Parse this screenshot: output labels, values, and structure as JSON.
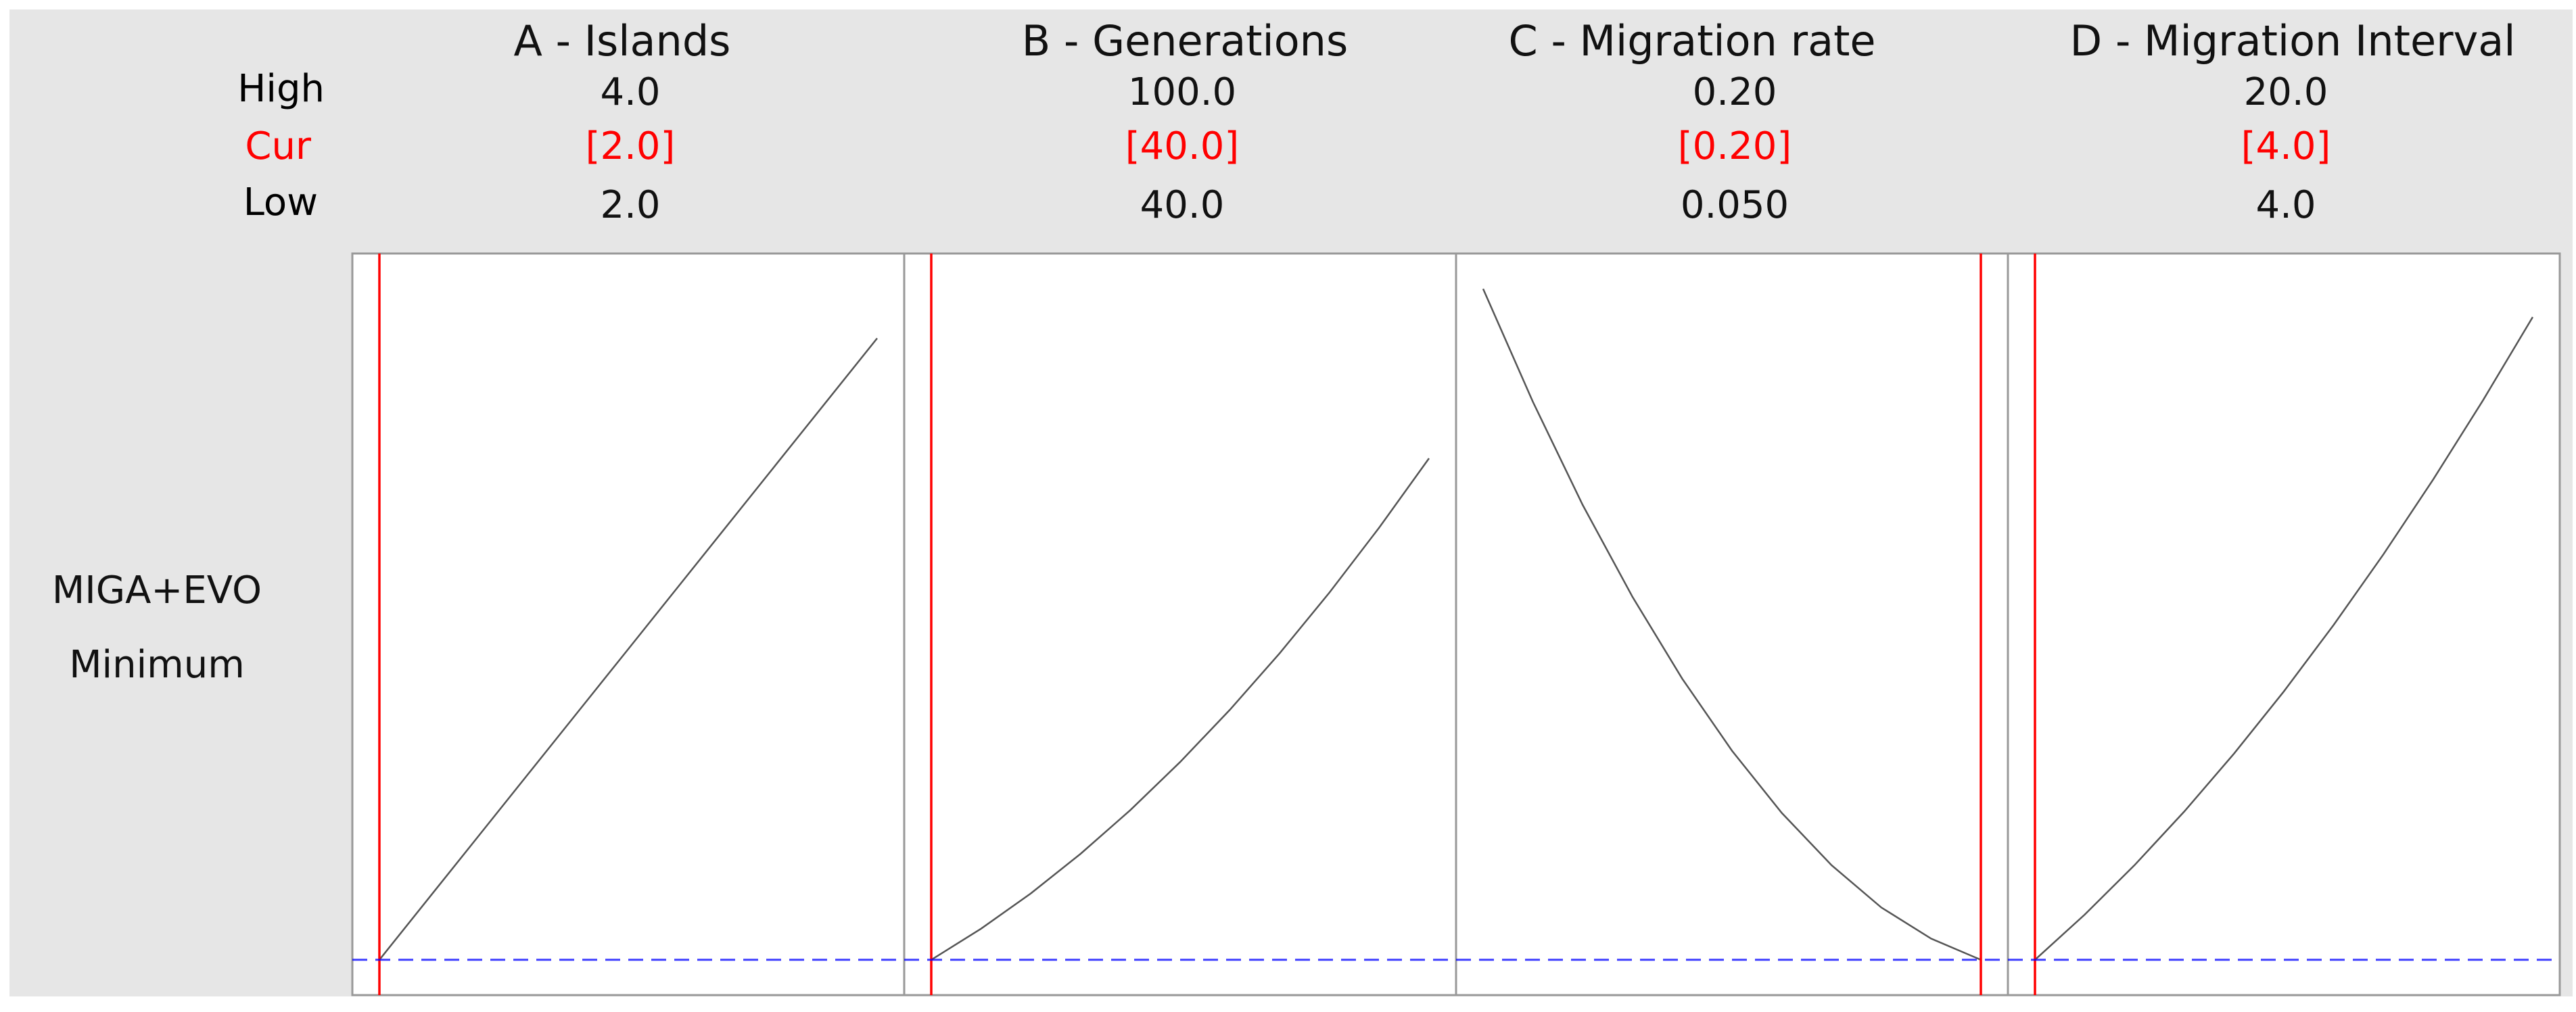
{
  "chart_data": {
    "type": "line",
    "title": "",
    "row_labels": {
      "high": "High",
      "cur": "Cur",
      "low": "Low"
    },
    "response": {
      "name": "MIGA+EVO",
      "goal": "Minimum"
    },
    "y_reference_value": 0.0,
    "ylim": [
      -0.05,
      1.0
    ],
    "colors": {
      "current_line": "#ff0000",
      "reference_line": "#0000ff",
      "curve": "#555555",
      "frame": "#999999",
      "cur_text": "#ff0000"
    },
    "factors": [
      {
        "header": "A - Islands",
        "high": "4.0",
        "cur": "[2.0]",
        "low": "2.0",
        "high_value": 4.0,
        "low_value": 2.0,
        "cur_value": 2.0,
        "curve": {
          "x": [
            2.0,
            2.2,
            2.4,
            2.6,
            2.8,
            3.0,
            3.2,
            3.4,
            3.6,
            3.8,
            4.0
          ],
          "y": [
            0.0,
            0.088,
            0.176,
            0.264,
            0.352,
            0.44,
            0.528,
            0.616,
            0.704,
            0.792,
            0.88
          ]
        }
      },
      {
        "header": "B - Generations",
        "high": "100.0",
        "cur": "[40.0]",
        "low": "40.0",
        "high_value": 100.0,
        "low_value": 40.0,
        "cur_value": 40.0,
        "curve": {
          "x": [
            40,
            46,
            52,
            58,
            64,
            70,
            76,
            82,
            88,
            94,
            100
          ],
          "y": [
            0.0,
            0.044,
            0.094,
            0.15,
            0.212,
            0.28,
            0.354,
            0.434,
            0.52,
            0.612,
            0.71
          ]
        }
      },
      {
        "header": "C - Migration rate",
        "high": "0.20",
        "cur": "[0.20]",
        "low": "0.050",
        "high_value": 0.2,
        "low_value": 0.05,
        "cur_value": 0.2,
        "curve": {
          "x": [
            0.05,
            0.065,
            0.08,
            0.095,
            0.11,
            0.125,
            0.14,
            0.155,
            0.17,
            0.185,
            0.2
          ],
          "y": [
            0.95,
            0.79,
            0.644,
            0.514,
            0.398,
            0.296,
            0.208,
            0.134,
            0.074,
            0.03,
            0.0
          ]
        }
      },
      {
        "header": "D - Migration Interval",
        "high": "20.0",
        "cur": "[4.0]",
        "low": "4.0",
        "high_value": 20.0,
        "low_value": 4.0,
        "cur_value": 4.0,
        "curve": {
          "x": [
            4.0,
            5.6,
            7.2,
            8.8,
            10.4,
            12.0,
            13.6,
            15.2,
            16.8,
            18.4,
            20.0
          ],
          "y": [
            0.0,
            0.064,
            0.134,
            0.21,
            0.292,
            0.38,
            0.474,
            0.574,
            0.68,
            0.792,
            0.91
          ]
        }
      }
    ]
  }
}
